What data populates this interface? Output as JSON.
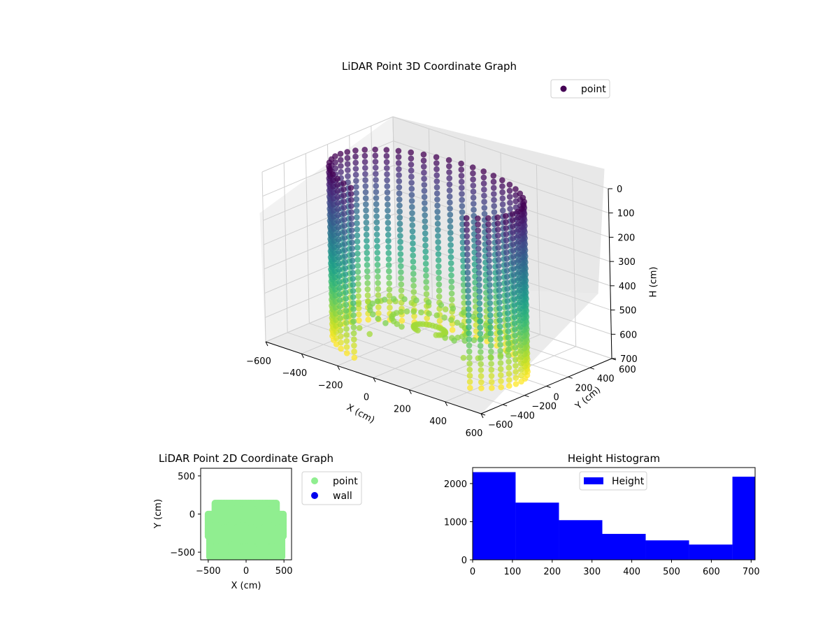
{
  "chart_data": [
    {
      "type": "scatter",
      "projection": "3d",
      "title": "LiDAR Point 3D Coordinate Graph",
      "xlabel": "X (cm)",
      "ylabel": "Y (cm)",
      "zlabel": "H (cm)",
      "xlim": [
        -600,
        600
      ],
      "ylim": [
        -600,
        600
      ],
      "zlim": [
        0,
        700
      ],
      "z_inverted": true,
      "xticks": [
        "−600",
        "−400",
        "−200",
        "0",
        "200",
        "400",
        "600"
      ],
      "yticks": [
        "−600",
        "−400",
        "−200",
        "0",
        "200",
        "400",
        "600"
      ],
      "zticks": [
        "0",
        "100",
        "200",
        "300",
        "400",
        "500",
        "600",
        "700"
      ],
      "colormap": "viridis",
      "legend": {
        "position": "top-right",
        "entries": [
          {
            "label": "point",
            "color": "#440154"
          }
        ]
      },
      "series": [
        {
          "name": "point",
          "shape": "open cylinder / wall ring",
          "radius_approx": 500,
          "height_range": [
            0,
            700
          ]
        }
      ],
      "grid": true
    },
    {
      "type": "scatter",
      "title": "LiDAR Point 2D Coordinate Graph",
      "xlabel": "X (cm)",
      "ylabel": "Y (cm)",
      "xlim": [
        -600,
        600
      ],
      "ylim": [
        -600,
        600
      ],
      "xticks": [
        "−500",
        "0",
        "500"
      ],
      "yticks": [
        "−500",
        "0",
        "500"
      ],
      "legend": {
        "position": "outside-right",
        "entries": [
          {
            "label": "point",
            "color": "#90ee90"
          },
          {
            "label": "wall",
            "color": "#0000ee"
          }
        ]
      },
      "series": [
        {
          "name": "point",
          "color": "#90ee90",
          "extent_x": [
            -500,
            500
          ],
          "extent_y": [
            -560,
            150
          ]
        }
      ]
    },
    {
      "type": "bar",
      "subtype": "histogram",
      "title": "Height Histogram",
      "bin_edges": [
        0,
        108,
        217,
        326,
        435,
        544,
        653,
        710
      ],
      "values": [
        2300,
        1500,
        1040,
        680,
        510,
        400,
        2180
      ],
      "xlim": [
        0,
        710
      ],
      "ylim": [
        0,
        2420
      ],
      "xticks": [
        "0",
        "100",
        "200",
        "300",
        "400",
        "500",
        "600",
        "700"
      ],
      "yticks": [
        "0",
        "1000",
        "2000"
      ],
      "color": "#0000ff",
      "legend": {
        "position": "top-center",
        "entries": [
          {
            "label": "Height",
            "color": "#0000ff"
          }
        ]
      }
    }
  ]
}
